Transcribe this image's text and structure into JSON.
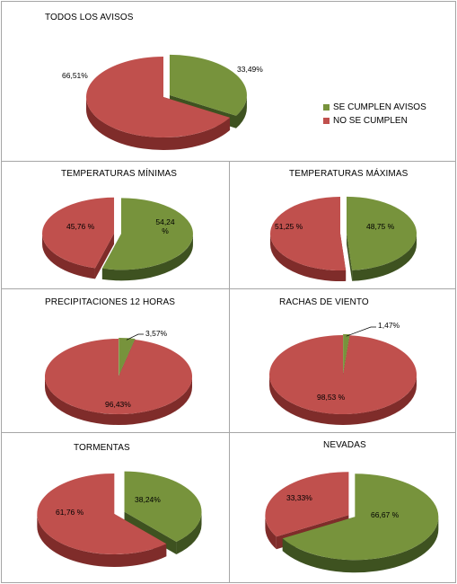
{
  "colors": {
    "green_top": "#77933c",
    "green_side": "#3e5220",
    "red_top": "#c0504d",
    "red_side": "#7f2c2a"
  },
  "legend": [
    {
      "label": "SE CUMPLEN AVISOS",
      "color": "#77933c"
    },
    {
      "label": "NO SE CUMPLEN",
      "color": "#c0504d"
    }
  ],
  "chart_data": [
    {
      "type": "pie",
      "title": "TODOS LOS AVISOS",
      "slices": [
        {
          "series": "SE CUMPLEN AVISOS",
          "value": 33.49,
          "label": "33,49%"
        },
        {
          "series": "NO SE CUMPLEN",
          "value": 66.51,
          "label": "66,51%"
        }
      ]
    },
    {
      "type": "pie",
      "title": "TEMPERATURAS MÍNIMAS",
      "slices": [
        {
          "series": "SE CUMPLEN AVISOS",
          "value": 54.24,
          "label": "54,24 %"
        },
        {
          "series": "NO SE CUMPLEN",
          "value": 45.76,
          "label": "45,76 %"
        }
      ]
    },
    {
      "type": "pie",
      "title": "TEMPERATURAS MÁXIMAS",
      "slices": [
        {
          "series": "SE CUMPLEN AVISOS",
          "value": 48.75,
          "label": "48,75 %"
        },
        {
          "series": "NO SE CUMPLEN",
          "value": 51.25,
          "label": "51,25 %"
        }
      ]
    },
    {
      "type": "pie",
      "title": "PRECIPITACIONES 12 HORAS",
      "slices": [
        {
          "series": "SE CUMPLEN AVISOS",
          "value": 3.57,
          "label": "3,57%"
        },
        {
          "series": "NO SE CUMPLEN",
          "value": 96.43,
          "label": "96,43%"
        }
      ]
    },
    {
      "type": "pie",
      "title": "RACHAS DE VIENTO",
      "slices": [
        {
          "series": "SE CUMPLEN AVISOS",
          "value": 1.47,
          "label": "1,47%"
        },
        {
          "series": "NO SE CUMPLEN",
          "value": 98.53,
          "label": "98,53 %"
        }
      ]
    },
    {
      "type": "pie",
      "title": "TORMENTAS",
      "slices": [
        {
          "series": "SE CUMPLEN AVISOS",
          "value": 38.24,
          "label": "38,24%"
        },
        {
          "series": "NO SE CUMPLEN",
          "value": 61.76,
          "label": "61,76 %"
        }
      ]
    },
    {
      "type": "pie",
      "title": "NEVADAS",
      "slices": [
        {
          "series": "SE CUMPLEN AVISOS",
          "value": 66.67,
          "label": "66,67 %"
        },
        {
          "series": "NO SE CUMPLEN",
          "value": 33.33,
          "label": "33,33%"
        }
      ]
    }
  ]
}
